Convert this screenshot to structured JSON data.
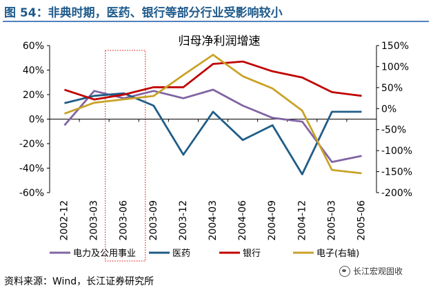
{
  "header": {
    "title": "图 54：非典时期，医药、银行等部分行业受影响较小"
  },
  "footer": {
    "source": "资料来源：Wind，长江证券研究所",
    "watermark": "长江宏观固收",
    "watermark_icon": "wechat-icon"
  },
  "chart_data": {
    "type": "line",
    "title": "归母净利润增速",
    "categories": [
      "2002-12",
      "2003-03",
      "2003-06",
      "2003-09",
      "2003-12",
      "2004-03",
      "2004-06",
      "2004-09",
      "2004-12",
      "2005-03",
      "2005-06"
    ],
    "left_axis": {
      "ticks": [
        "60%",
        "40%",
        "20%",
        "0%",
        "-20%",
        "-40%",
        "-60%"
      ],
      "range": [
        -60,
        60
      ]
    },
    "right_axis": {
      "ticks": [
        "150%",
        "100%",
        "50%",
        "0%",
        "-50%",
        "-100%",
        "-150%",
        "-200%"
      ],
      "range": [
        -200,
        150
      ]
    },
    "highlight": {
      "from": "2003-03",
      "to": "2003-06",
      "style": "dotted red box"
    },
    "series": [
      {
        "name": "电力及公用事业",
        "color": "#8064a2",
        "axis": "left",
        "values": [
          -5,
          23,
          17,
          23,
          17,
          24,
          11,
          1,
          -2,
          -35,
          -30
        ]
      },
      {
        "name": "医药",
        "color": "#1f5c87",
        "axis": "left",
        "values": [
          13,
          19,
          21,
          11,
          -29,
          6,
          -17,
          -5,
          -45,
          6,
          6
        ]
      },
      {
        "name": "银行",
        "color": "#c00000",
        "axis": "left",
        "values": [
          24,
          16,
          20,
          26,
          26,
          45,
          47,
          39,
          34,
          22,
          19
        ]
      },
      {
        "name": "电子(右轴)",
        "color": "#c9a227",
        "axis": "right",
        "values": [
          -12,
          14,
          22,
          30,
          80,
          128,
          77,
          48,
          -5,
          -146,
          -154
        ]
      }
    ]
  }
}
